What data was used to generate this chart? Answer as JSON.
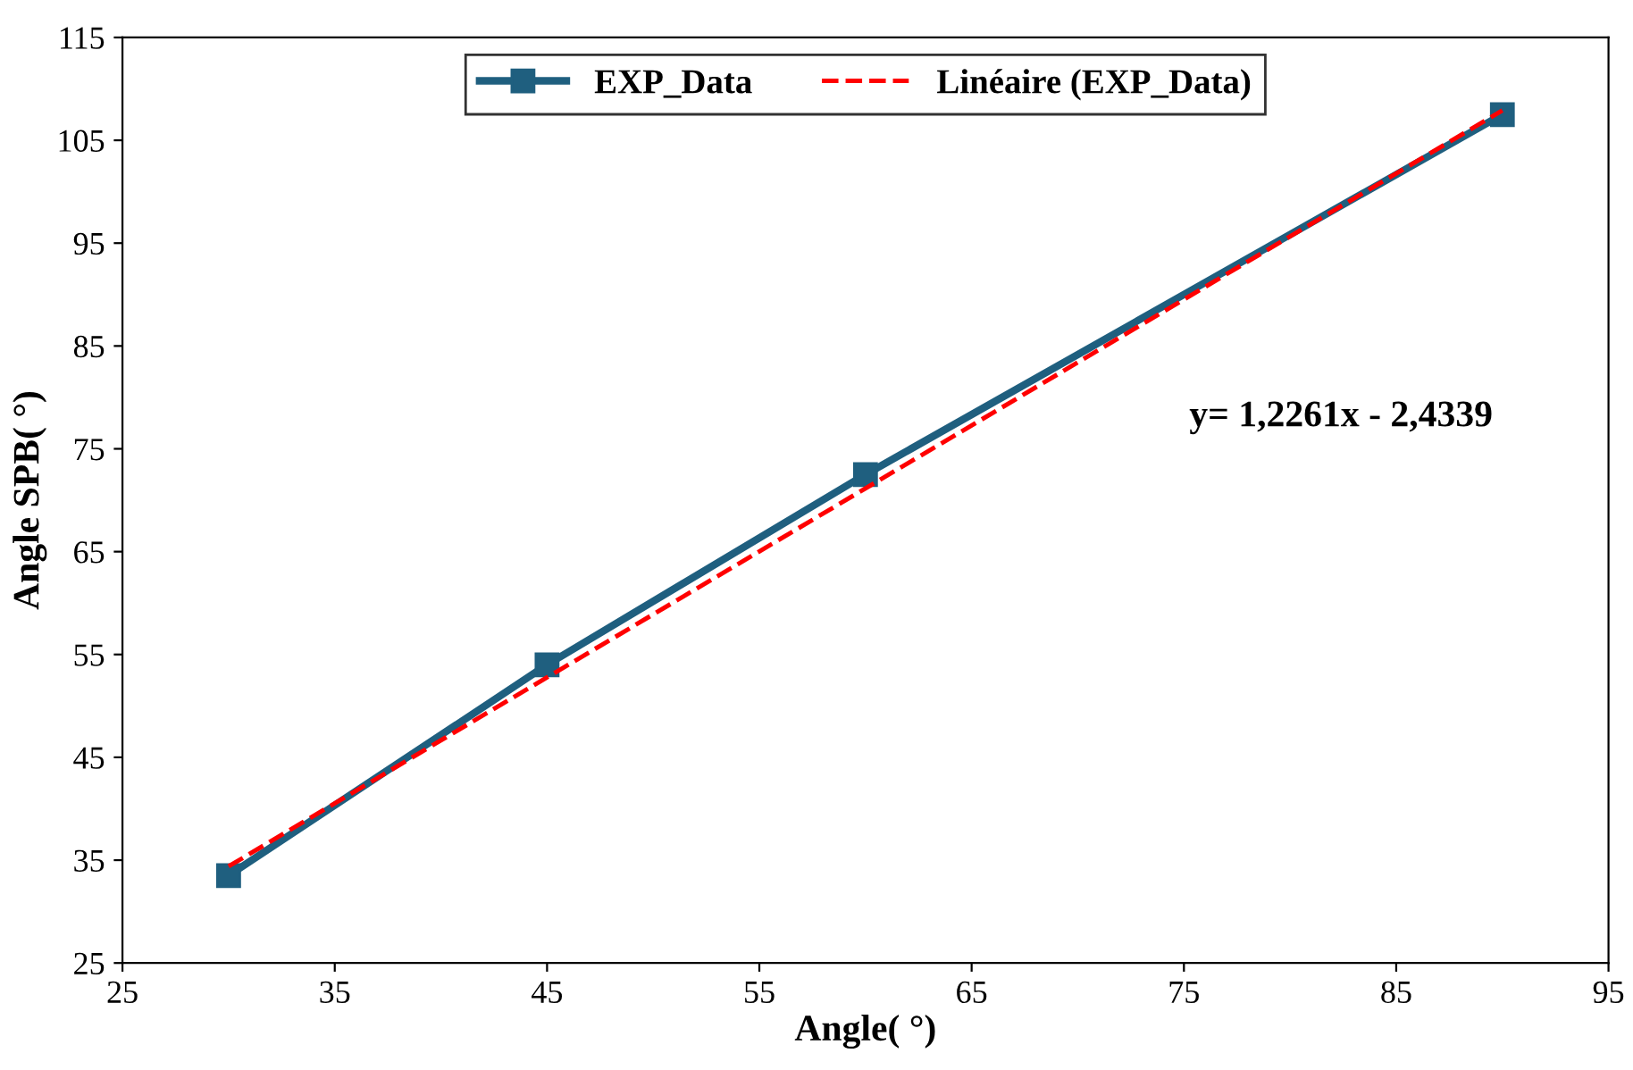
{
  "chart_data": {
    "type": "line",
    "xlabel": "Angle( °)",
    "ylabel": "Angle SPB( °)",
    "x": [
      30,
      45,
      60,
      90
    ],
    "series": [
      {
        "name": "EXP_Data",
        "color": "#1f5f7f",
        "values": [
          33.5,
          54,
          72.5,
          107.5
        ],
        "marker": "square",
        "line_style": "solid"
      },
      {
        "name": "Linéaire (EXP_Data)",
        "color": "#ff0000",
        "x": [
          30,
          90
        ],
        "values": [
          34.4,
          107.9
        ],
        "marker": "none",
        "line_style": "dashed"
      }
    ],
    "xlim": [
      25,
      95
    ],
    "xticks": [
      25,
      35,
      45,
      55,
      65,
      75,
      85,
      95
    ],
    "ylim": [
      25,
      115
    ],
    "yticks": [
      25,
      35,
      45,
      55,
      65,
      75,
      85,
      95,
      105,
      115
    ],
    "grid": false,
    "legend": "top",
    "annotations": [
      "y= 1,2261x - 2,4339"
    ]
  }
}
